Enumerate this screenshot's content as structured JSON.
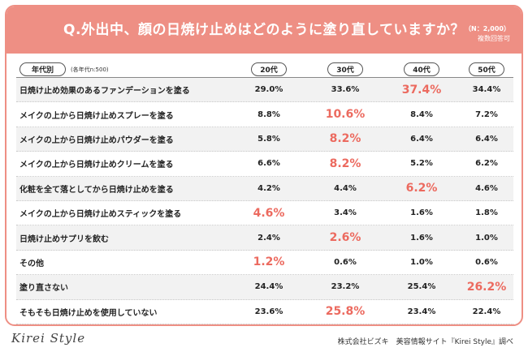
{
  "header": {
    "title": "Q.外出中、顔の日焼け止めはどのように塗り直していますか？",
    "n_label": "（N：2,000）",
    "multi_answer": "複数回答可"
  },
  "columns": {
    "category_label": "年代別",
    "category_note": "(各年代n:500)",
    "ages": [
      "20代",
      "30代",
      "40代",
      "50代"
    ]
  },
  "chart_data": {
    "type": "table",
    "title": "Q.外出中、顔の日焼け止めはどのように塗り直していますか？",
    "categories": [
      "20代",
      "30代",
      "40代",
      "50代"
    ],
    "rows": [
      {
        "label": "日焼け止め効果のあるファンデーションを塗る",
        "values": [
          "29.0%",
          "33.6%",
          "37.4%",
          "34.4%"
        ],
        "highlight": 2
      },
      {
        "label": "メイクの上から日焼け止めスプレーを塗る",
        "values": [
          "8.8%",
          "10.6%",
          "8.4%",
          "7.2%"
        ],
        "highlight": 1
      },
      {
        "label": "メイクの上から日焼け止めパウダーを塗る",
        "values": [
          "5.8%",
          "8.2%",
          "6.4%",
          "6.4%"
        ],
        "highlight": 1
      },
      {
        "label": "メイクの上から日焼け止めクリームを塗る",
        "values": [
          "6.6%",
          "8.2%",
          "5.2%",
          "6.2%"
        ],
        "highlight": 1
      },
      {
        "label": "化粧を全て落としてから日焼け止めを塗る",
        "values": [
          "4.2%",
          "4.4%",
          "6.2%",
          "4.6%"
        ],
        "highlight": 2
      },
      {
        "label": "メイクの上から日焼け止めスティックを塗る",
        "values": [
          "4.6%",
          "3.4%",
          "1.6%",
          "1.8%"
        ],
        "highlight": 0
      },
      {
        "label": "日焼け止めサプリを飲む",
        "values": [
          "2.4%",
          "2.6%",
          "1.6%",
          "1.0%"
        ],
        "highlight": 1
      },
      {
        "label": "その他",
        "values": [
          "1.2%",
          "0.6%",
          "1.0%",
          "0.6%"
        ],
        "highlight": 0
      },
      {
        "label": "塗り直さない",
        "values": [
          "24.4%",
          "23.2%",
          "25.4%",
          "26.2%"
        ],
        "highlight": 3
      },
      {
        "label": "そもそも日焼け止めを使用していない",
        "values": [
          "23.6%",
          "25.8%",
          "23.4%",
          "22.4%"
        ],
        "highlight": 1
      }
    ]
  },
  "footer": {
    "logo": "Kirei Style",
    "credit": "株式会社ビズキ　美容情報サイト『Kirei Style』調べ"
  },
  "colors": {
    "accent": "#ee8f84",
    "highlight_text": "#ec6a5f",
    "alt_row": "#f2f2f2"
  }
}
